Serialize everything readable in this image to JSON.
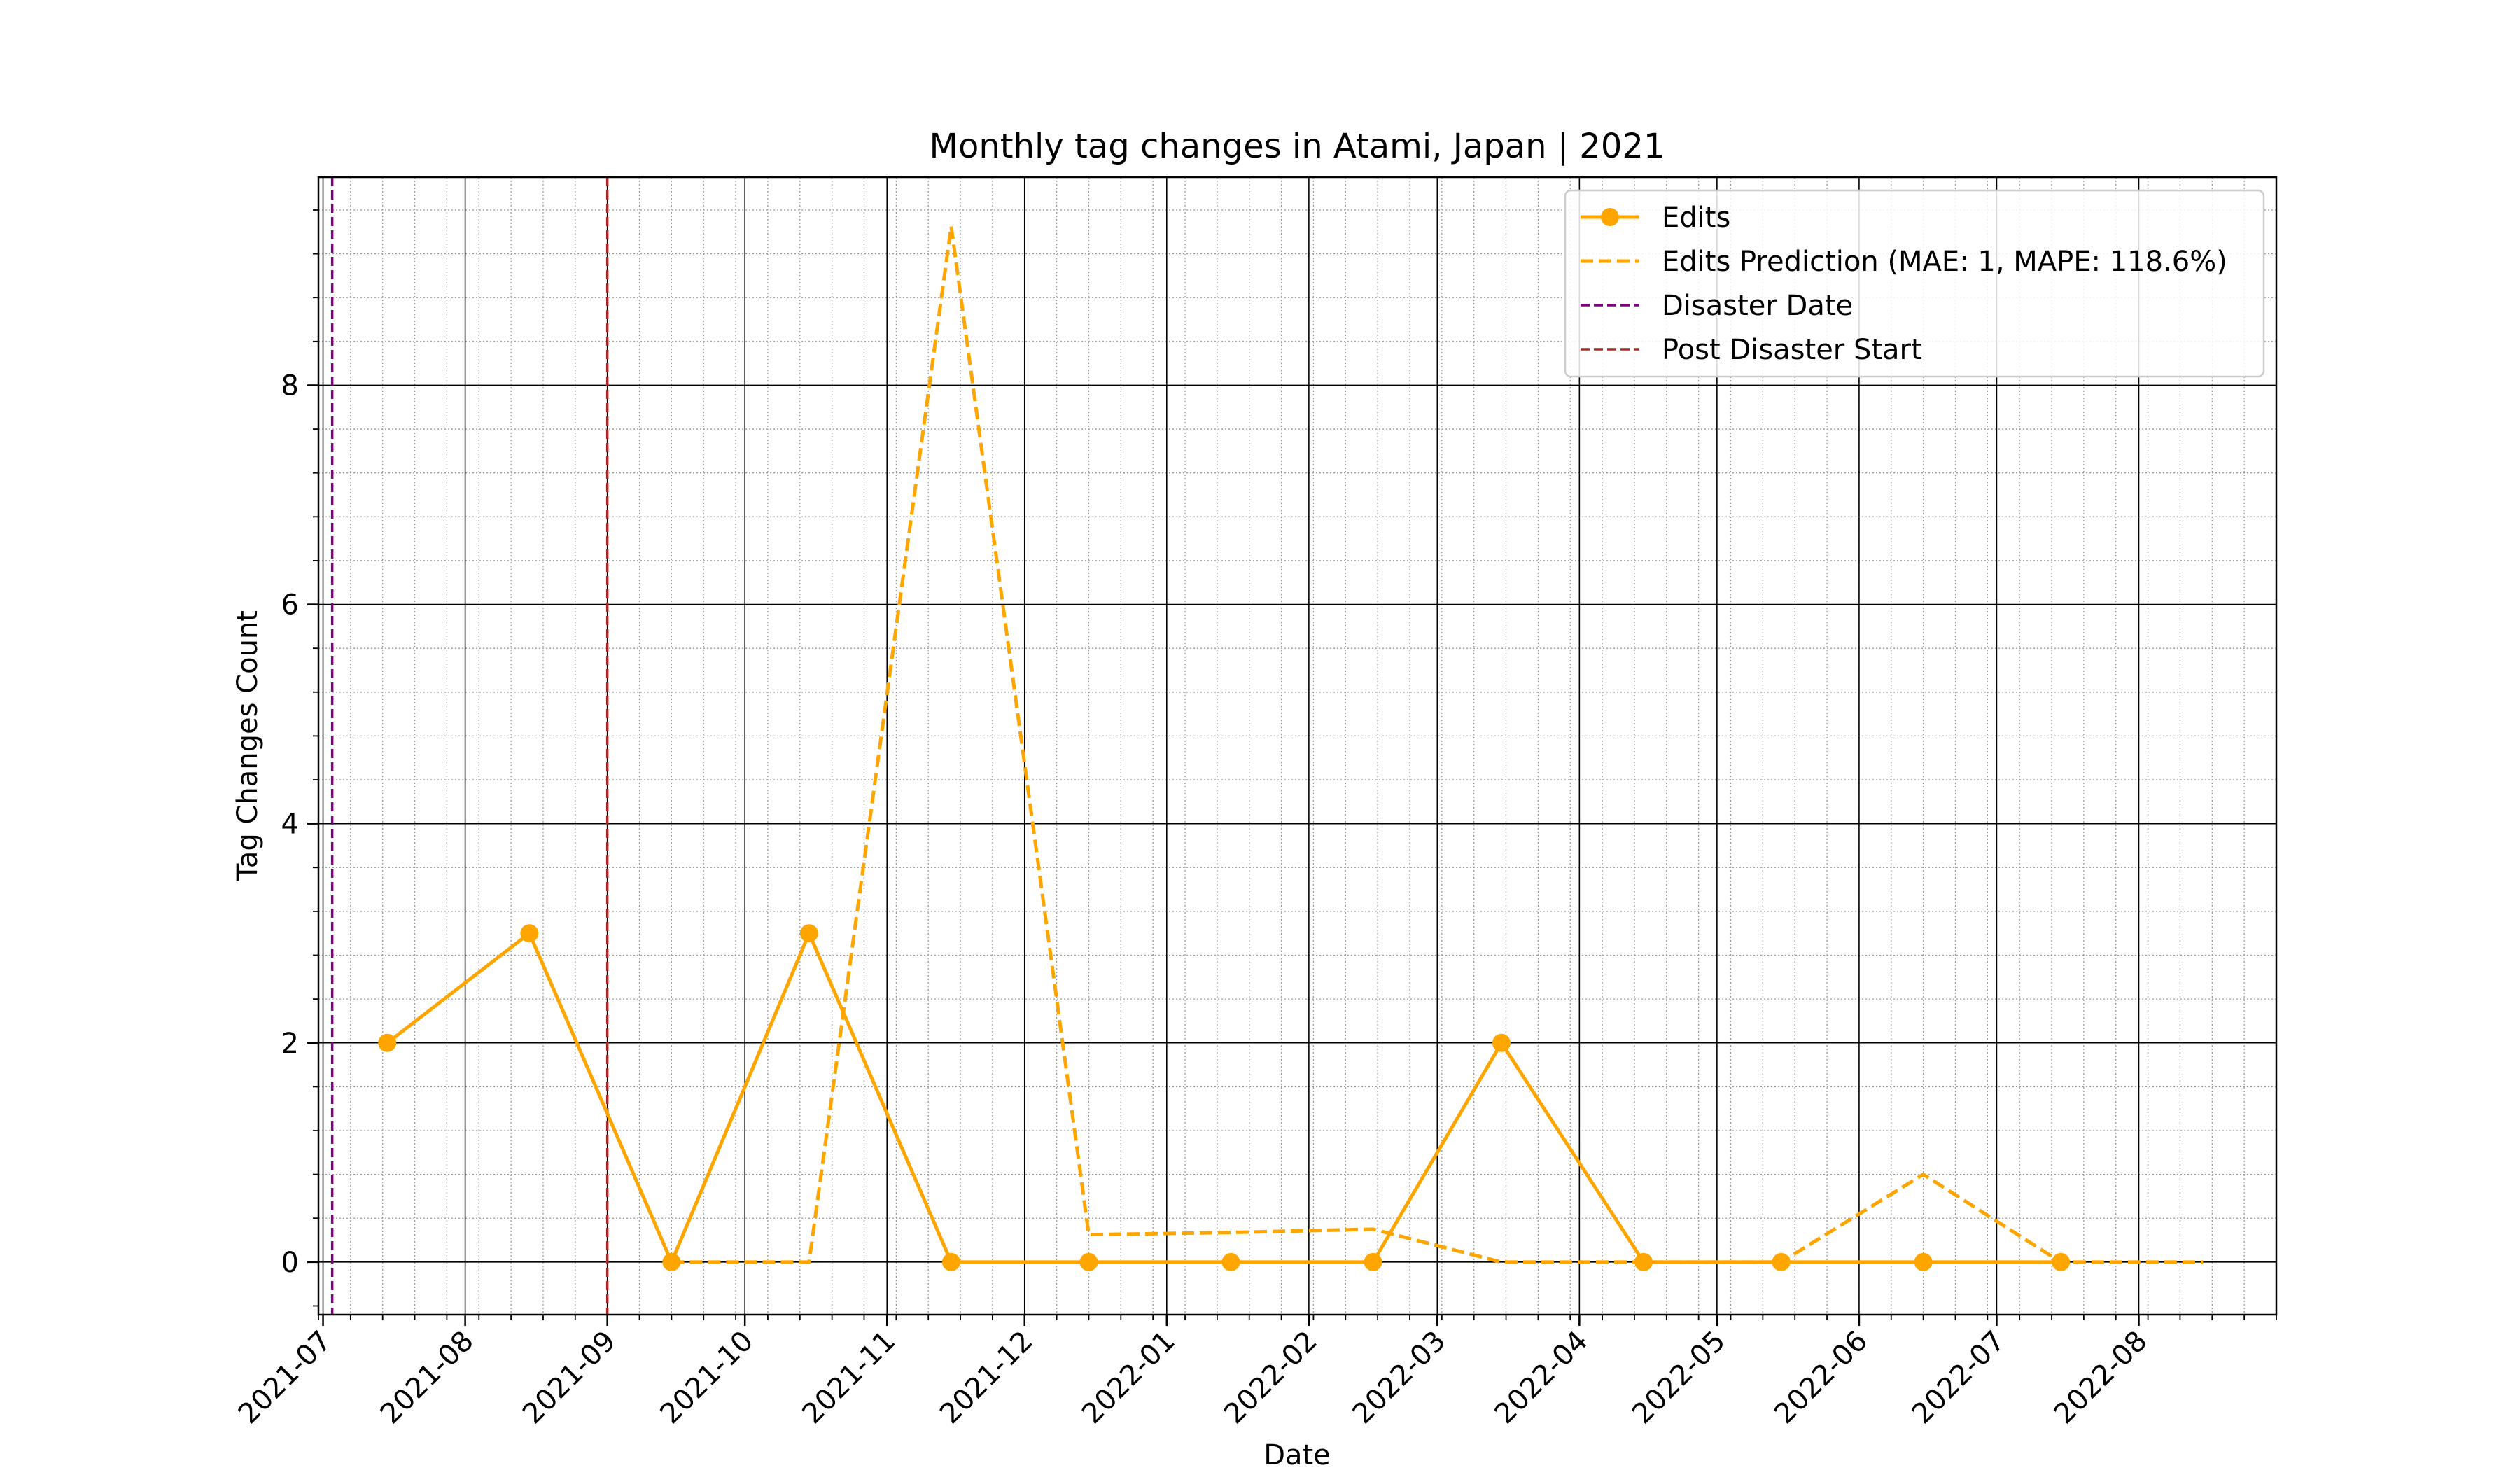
{
  "chart_data": {
    "type": "line",
    "title": "Monthly tag changes in Atami, Japan | 2021",
    "xlabel": "Date",
    "ylabel": "Tag Changes Count",
    "x_ticks": [
      "2021-07",
      "2021-08",
      "2021-09",
      "2021-10",
      "2021-11",
      "2021-12",
      "2022-01",
      "2022-02",
      "2022-03",
      "2022-04",
      "2022-05",
      "2022-06",
      "2022-07",
      "2022-08"
    ],
    "x_range": [
      "2021-06-30",
      "2022-08-31"
    ],
    "ylim": [
      -0.48,
      9.9
    ],
    "y_ticks": [
      0,
      2,
      4,
      6,
      8
    ],
    "grid": true,
    "legend_position": "top-right",
    "series": [
      {
        "name": "Edits",
        "style": "solid-markers",
        "color": "#ffa500",
        "points": [
          {
            "x": "2021-07-15",
            "y": 2
          },
          {
            "x": "2021-08-15",
            "y": 3
          },
          {
            "x": "2021-09-15",
            "y": 0
          },
          {
            "x": "2021-10-15",
            "y": 3
          },
          {
            "x": "2021-11-15",
            "y": 0
          },
          {
            "x": "2021-12-15",
            "y": 0
          },
          {
            "x": "2022-01-15",
            "y": 0
          },
          {
            "x": "2022-02-15",
            "y": 0
          },
          {
            "x": "2022-03-15",
            "y": 2
          },
          {
            "x": "2022-04-15",
            "y": 0
          },
          {
            "x": "2022-05-15",
            "y": 0
          },
          {
            "x": "2022-06-15",
            "y": 0
          },
          {
            "x": "2022-07-15",
            "y": 0
          }
        ]
      },
      {
        "name": "Edits Prediction (MAE: 1, MAPE: 118.6%)",
        "style": "dashed",
        "color": "#ffa500",
        "points": [
          {
            "x": "2021-09-15",
            "y": 0
          },
          {
            "x": "2021-10-15",
            "y": 0
          },
          {
            "x": "2021-11-15",
            "y": 9.45
          },
          {
            "x": "2021-12-15",
            "y": 0.25
          },
          {
            "x": "2022-01-15",
            "y": 0.27
          },
          {
            "x": "2022-02-15",
            "y": 0.3
          },
          {
            "x": "2022-03-15",
            "y": 0
          },
          {
            "x": "2022-04-15",
            "y": 0
          },
          {
            "x": "2022-05-15",
            "y": 0
          },
          {
            "x": "2022-06-15",
            "y": 0.8
          },
          {
            "x": "2022-07-15",
            "y": 0
          },
          {
            "x": "2022-08-15",
            "y": 0
          }
        ]
      }
    ],
    "vlines": [
      {
        "name": "Disaster Date",
        "x": "2021-07-03",
        "color": "#800080",
        "style": "dashed"
      },
      {
        "name": "Post Disaster Start",
        "x": "2021-09-01",
        "color": "#a52a2a",
        "style": "dashed"
      }
    ]
  }
}
